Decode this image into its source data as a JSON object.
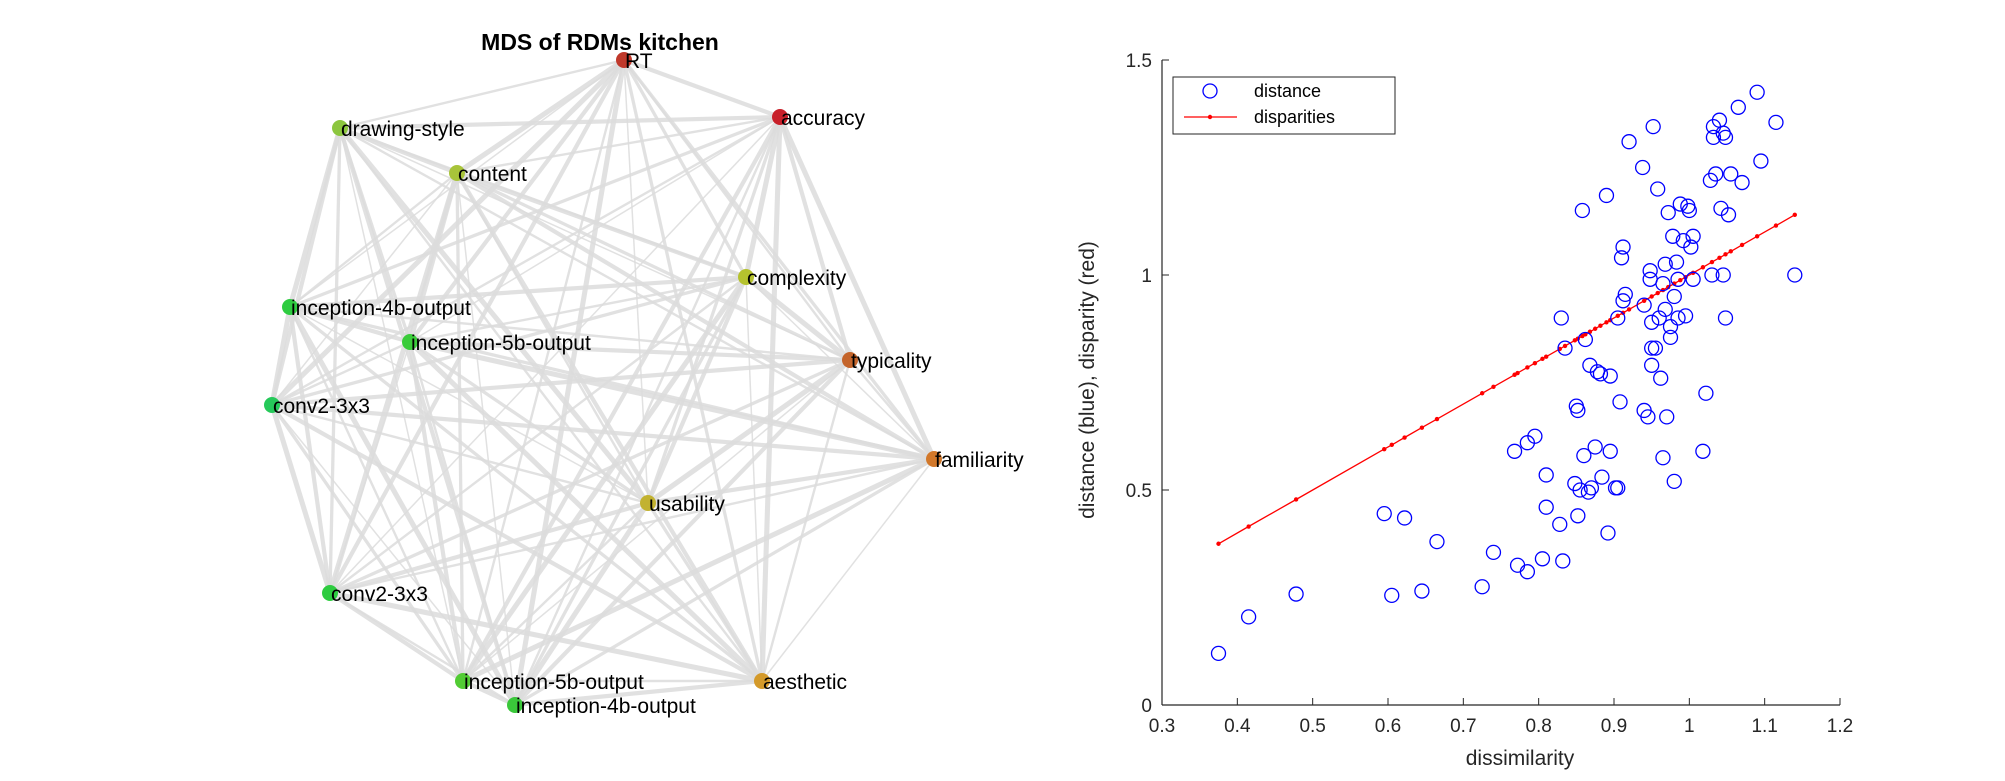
{
  "chart_data": [
    {
      "type": "network",
      "title": "MDS of RDMs kitchen",
      "nodes": [
        {
          "label": "RT",
          "color": "#c0392b"
        },
        {
          "label": "accuracy",
          "color": "#c8202a"
        },
        {
          "label": "drawing-style",
          "color": "#8cc63f"
        },
        {
          "label": "content",
          "color": "#a8c43a"
        },
        {
          "label": "complexity",
          "color": "#b5c22e"
        },
        {
          "label": "inception-4b-output",
          "color": "#2ecc40"
        },
        {
          "label": "inception-5b-output",
          "color": "#3acc3a"
        },
        {
          "label": "typicality",
          "color": "#c4642a"
        },
        {
          "label": "conv2-3x3",
          "color": "#26c95a"
        },
        {
          "label": "familiarity",
          "color": "#d2782a"
        },
        {
          "label": "usability",
          "color": "#c2b230"
        },
        {
          "label": "conv2-3x3",
          "color": "#2ecc40"
        },
        {
          "label": "inception-5b-output",
          "color": "#52cc34"
        },
        {
          "label": "inception-4b-output",
          "color": "#3ac83a"
        },
        {
          "label": "aesthetic",
          "color": "#d49a2a"
        }
      ]
    },
    {
      "type": "scatter",
      "xlabel": "dissimilarity",
      "ylabel": "distance (blue), disparity (red)",
      "xlim": [
        0.3,
        1.2
      ],
      "ylim": [
        0,
        1.5
      ],
      "xticks": [
        "0.3",
        "0.4",
        "0.5",
        "0.6",
        "0.7",
        "0.8",
        "0.9",
        "1",
        "1.1",
        "1.2"
      ],
      "yticks": [
        "0",
        "0.5",
        "1",
        "1.5"
      ],
      "legend_position": "top-left",
      "legend": [
        "distance",
        "disparities"
      ],
      "series": [
        {
          "name": "distance",
          "marker": "circle",
          "color": "#0000ff",
          "points": [
            [
              0.375,
              0.12
            ],
            [
              0.415,
              0.205
            ],
            [
              0.478,
              0.258
            ],
            [
              0.595,
              0.445
            ],
            [
              0.605,
              0.255
            ],
            [
              0.622,
              0.435
            ],
            [
              0.645,
              0.265
            ],
            [
              0.665,
              0.38
            ],
            [
              0.725,
              0.275
            ],
            [
              0.74,
              0.355
            ],
            [
              0.768,
              0.59
            ],
            [
              0.772,
              0.325
            ],
            [
              0.785,
              0.61
            ],
            [
              0.785,
              0.31
            ],
            [
              0.795,
              0.625
            ],
            [
              0.805,
              0.34
            ],
            [
              0.81,
              0.535
            ],
            [
              0.81,
              0.46
            ],
            [
              0.828,
              0.42
            ],
            [
              0.83,
              0.9
            ],
            [
              0.832,
              0.335
            ],
            [
              0.835,
              0.83
            ],
            [
              0.848,
              0.515
            ],
            [
              0.85,
              0.695
            ],
            [
              0.852,
              0.685
            ],
            [
              0.852,
              0.44
            ],
            [
              0.855,
              0.5
            ],
            [
              0.858,
              1.15
            ],
            [
              0.86,
              0.58
            ],
            [
              0.862,
              0.85
            ],
            [
              0.866,
              0.495
            ],
            [
              0.868,
              0.79
            ],
            [
              0.87,
              0.505
            ],
            [
              0.875,
              0.6
            ],
            [
              0.878,
              0.775
            ],
            [
              0.882,
              0.77
            ],
            [
              0.884,
              0.53
            ],
            [
              0.89,
              1.185
            ],
            [
              0.892,
              0.4
            ],
            [
              0.895,
              0.59
            ],
            [
              0.895,
              0.765
            ],
            [
              0.902,
              0.505
            ],
            [
              0.905,
              0.9
            ],
            [
              0.905,
              0.505
            ],
            [
              0.908,
              0.705
            ],
            [
              0.91,
              1.04
            ],
            [
              0.912,
              1.065
            ],
            [
              0.912,
              0.94
            ],
            [
              0.915,
              0.955
            ],
            [
              0.92,
              1.31
            ],
            [
              0.938,
              1.25
            ],
            [
              0.94,
              0.685
            ],
            [
              0.94,
              0.93
            ],
            [
              0.945,
              0.67
            ],
            [
              0.948,
              1.01
            ],
            [
              0.948,
              0.99
            ],
            [
              0.95,
              0.79
            ],
            [
              0.95,
              0.83
            ],
            [
              0.95,
              0.89
            ],
            [
              0.952,
              1.345
            ],
            [
              0.955,
              0.83
            ],
            [
              0.958,
              1.2
            ],
            [
              0.96,
              0.9
            ],
            [
              0.962,
              0.76
            ],
            [
              0.965,
              0.575
            ],
            [
              0.965,
              0.98
            ],
            [
              0.968,
              0.92
            ],
            [
              0.968,
              1.025
            ],
            [
              0.97,
              0.67
            ],
            [
              0.972,
              1.145
            ],
            [
              0.975,
              0.855
            ],
            [
              0.975,
              0.88
            ],
            [
              0.978,
              1.09
            ],
            [
              0.98,
              0.95
            ],
            [
              0.98,
              0.52
            ],
            [
              0.983,
              1.03
            ],
            [
              0.985,
              0.9
            ],
            [
              0.985,
              0.99
            ],
            [
              0.988,
              1.165
            ],
            [
              0.992,
              1.08
            ],
            [
              0.995,
              0.905
            ],
            [
              0.998,
              1.16
            ],
            [
              1.0,
              1.15
            ],
            [
              1.002,
              1.065
            ],
            [
              1.005,
              1.09
            ],
            [
              1.005,
              0.99
            ],
            [
              1.018,
              0.59
            ],
            [
              1.022,
              0.725
            ],
            [
              1.028,
              1.22
            ],
            [
              1.03,
              1.0
            ],
            [
              1.032,
              1.32
            ],
            [
              1.032,
              1.345
            ],
            [
              1.035,
              1.235
            ],
            [
              1.04,
              1.36
            ],
            [
              1.042,
              1.155
            ],
            [
              1.045,
              1.33
            ],
            [
              1.045,
              1.0
            ],
            [
              1.048,
              1.32
            ],
            [
              1.048,
              0.9
            ],
            [
              1.052,
              1.14
            ],
            [
              1.055,
              1.235
            ],
            [
              1.065,
              1.39
            ],
            [
              1.07,
              1.215
            ],
            [
              1.09,
              1.425
            ],
            [
              1.095,
              1.265
            ],
            [
              1.115,
              1.355
            ],
            [
              1.14,
              1.0
            ]
          ]
        },
        {
          "name": "disparities",
          "marker": "dot-line",
          "color": "#ff0000",
          "points": [
            [
              0.375,
              0.375
            ],
            [
              0.415,
              0.415
            ],
            [
              0.478,
              0.478
            ],
            [
              0.595,
              0.595
            ],
            [
              0.605,
              0.605
            ],
            [
              0.622,
              0.622
            ],
            [
              0.645,
              0.645
            ],
            [
              0.665,
              0.665
            ],
            [
              0.725,
              0.725
            ],
            [
              0.74,
              0.74
            ],
            [
              0.768,
              0.768
            ],
            [
              0.772,
              0.772
            ],
            [
              0.785,
              0.785
            ],
            [
              0.795,
              0.795
            ],
            [
              0.805,
              0.805
            ],
            [
              0.81,
              0.81
            ],
            [
              0.828,
              0.828
            ],
            [
              0.835,
              0.835
            ],
            [
              0.848,
              0.848
            ],
            [
              0.852,
              0.852
            ],
            [
              0.858,
              0.858
            ],
            [
              0.862,
              0.862
            ],
            [
              0.868,
              0.868
            ],
            [
              0.875,
              0.875
            ],
            [
              0.882,
              0.882
            ],
            [
              0.89,
              0.89
            ],
            [
              0.895,
              0.895
            ],
            [
              0.905,
              0.905
            ],
            [
              0.912,
              0.912
            ],
            [
              0.92,
              0.92
            ],
            [
              0.94,
              0.94
            ],
            [
              0.95,
              0.95
            ],
            [
              0.958,
              0.958
            ],
            [
              0.965,
              0.965
            ],
            [
              0.972,
              0.972
            ],
            [
              0.98,
              0.98
            ],
            [
              0.988,
              0.988
            ],
            [
              0.995,
              0.995
            ],
            [
              1.005,
              1.005
            ],
            [
              1.018,
              1.018
            ],
            [
              1.03,
              1.03
            ],
            [
              1.04,
              1.04
            ],
            [
              1.048,
              1.048
            ],
            [
              1.055,
              1.055
            ],
            [
              1.07,
              1.07
            ],
            [
              1.09,
              1.09
            ],
            [
              1.115,
              1.115
            ],
            [
              1.14,
              1.14
            ]
          ]
        }
      ]
    }
  ]
}
